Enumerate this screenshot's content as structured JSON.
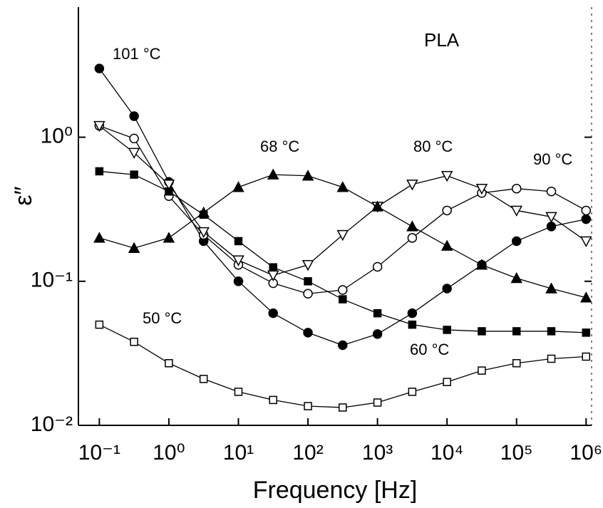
{
  "chart_data": {
    "type": "line",
    "xlabel": "Frequency [Hz]",
    "ylabel": "ε″",
    "annotation": "PLA",
    "xscale": "log",
    "yscale": "log",
    "xlim": [
      0.05,
      1200000
    ],
    "ylim": [
      0.01,
      8
    ],
    "xticks": [
      {
        "value": 0.1,
        "label": "10⁻¹"
      },
      {
        "value": 1,
        "label": "10⁰"
      },
      {
        "value": 10,
        "label": "10¹"
      },
      {
        "value": 100,
        "label": "10²"
      },
      {
        "value": 1000,
        "label": "10³"
      },
      {
        "value": 10000,
        "label": "10⁴"
      },
      {
        "value": 100000,
        "label": "10⁵"
      },
      {
        "value": 1000000,
        "label": "10⁶"
      }
    ],
    "yticks": [
      {
        "value": 0.01,
        "label": "10⁻²"
      },
      {
        "value": 0.1,
        "label": "10⁻¹"
      },
      {
        "value": 1,
        "label": "10⁰"
      }
    ],
    "x": [
      0.1,
      0.316,
      1,
      3.16,
      10,
      31.6,
      100,
      316,
      1000,
      3162,
      10000,
      31620,
      100000,
      316200,
      1000000
    ],
    "series": [
      {
        "name": "101 °C",
        "color": "#000000",
        "marker": "circle",
        "filled": true,
        "values": [
          3.0,
          1.4,
          0.49,
          0.19,
          0.1,
          0.06,
          0.044,
          0.036,
          0.043,
          0.06,
          0.089,
          0.13,
          0.19,
          0.24,
          0.27
        ]
      },
      {
        "name": "90 °C",
        "color": "#000000",
        "marker": "circle",
        "filled": false,
        "values": [
          1.2,
          0.98,
          0.39,
          0.21,
          0.13,
          0.097,
          0.082,
          0.087,
          0.126,
          0.2,
          0.31,
          0.41,
          0.44,
          0.42,
          0.31
        ]
      },
      {
        "name": "80 °C",
        "color": "#000000",
        "marker": "triangle-down",
        "filled": false,
        "values": [
          1.2,
          0.78,
          0.47,
          0.22,
          0.14,
          0.11,
          0.13,
          0.21,
          0.33,
          0.47,
          0.54,
          0.44,
          0.31,
          0.28,
          0.19
        ]
      },
      {
        "name": "68 °C",
        "color": "#000000",
        "marker": "triangle-up",
        "filled": true,
        "values": [
          0.2,
          0.17,
          0.2,
          0.3,
          0.45,
          0.55,
          0.54,
          0.45,
          0.33,
          0.24,
          0.176,
          0.13,
          0.105,
          0.089,
          0.077
        ]
      },
      {
        "name": "60 °C",
        "color": "#000000",
        "marker": "square",
        "filled": true,
        "values": [
          0.58,
          0.55,
          0.42,
          0.29,
          0.19,
          0.125,
          0.1,
          0.075,
          0.06,
          0.05,
          0.046,
          0.045,
          0.045,
          0.045,
          0.044
        ]
      },
      {
        "name": "50 °C",
        "color": "#000000",
        "marker": "square",
        "filled": false,
        "values": [
          0.05,
          0.038,
          0.027,
          0.021,
          0.0171,
          0.015,
          0.0136,
          0.0133,
          0.0144,
          0.0171,
          0.02,
          0.024,
          0.027,
          0.029,
          0.03
        ]
      }
    ]
  }
}
